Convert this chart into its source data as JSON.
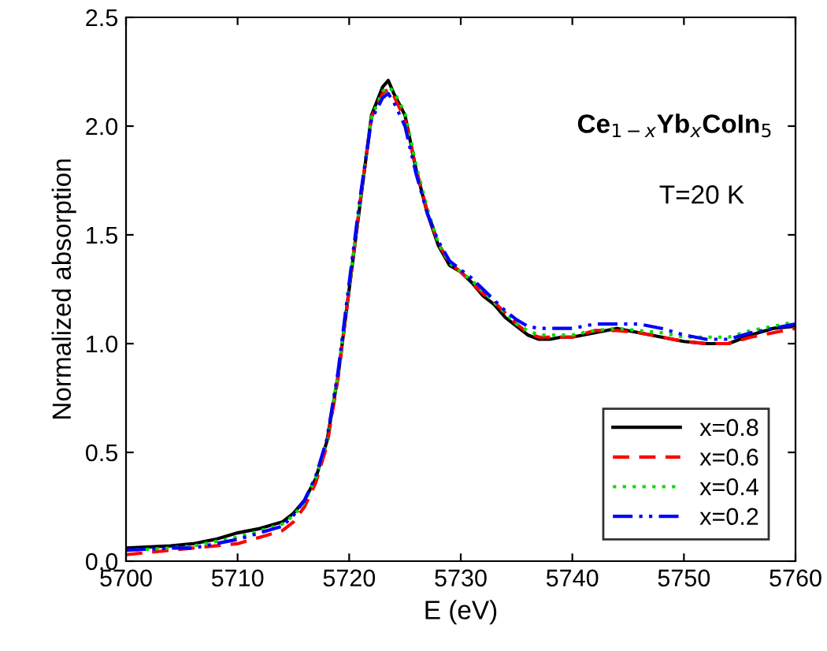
{
  "chart_data": {
    "type": "line",
    "xlabel": "E (eV)",
    "ylabel": "Normalized absorption",
    "annotations": [
      "Ce$_{1−x}$Yb$_{x}$CoIn$_{5}$",
      "T=20 K"
    ],
    "x": [
      5700,
      5704,
      5706,
      5708,
      5710,
      5712,
      5714,
      5715,
      5716,
      5717,
      5718,
      5719,
      5720,
      5721,
      5722,
      5723,
      5723.5,
      5724,
      5725,
      5726,
      5727,
      5728,
      5729,
      5730,
      5731,
      5732,
      5733,
      5734,
      5735,
      5736,
      5737,
      5738,
      5739,
      5740,
      5742,
      5744,
      5746,
      5748,
      5750,
      5752,
      5754,
      5756,
      5758,
      5760
    ],
    "series": [
      {
        "name": "x=0.8",
        "color": "#000000",
        "line_style": "solid",
        "values": [
          0.06,
          0.07,
          0.08,
          0.1,
          0.13,
          0.15,
          0.18,
          0.22,
          0.28,
          0.38,
          0.55,
          0.85,
          1.25,
          1.65,
          2.05,
          2.18,
          2.21,
          2.15,
          2.05,
          1.8,
          1.6,
          1.45,
          1.36,
          1.33,
          1.28,
          1.22,
          1.18,
          1.12,
          1.08,
          1.04,
          1.02,
          1.02,
          1.03,
          1.03,
          1.05,
          1.07,
          1.05,
          1.03,
          1.01,
          1.0,
          1.0,
          1.04,
          1.07,
          1.08
        ]
      },
      {
        "name": "x=0.6",
        "color": "#ff0000",
        "line_style": "dashed",
        "values": [
          0.03,
          0.05,
          0.06,
          0.07,
          0.08,
          0.11,
          0.14,
          0.18,
          0.25,
          0.36,
          0.53,
          0.84,
          1.25,
          1.66,
          2.04,
          2.15,
          2.17,
          2.14,
          2.03,
          1.8,
          1.61,
          1.46,
          1.37,
          1.33,
          1.28,
          1.23,
          1.19,
          1.14,
          1.09,
          1.05,
          1.03,
          1.03,
          1.03,
          1.03,
          1.06,
          1.06,
          1.05,
          1.03,
          1.01,
          1.0,
          1.0,
          1.03,
          1.05,
          1.07
        ]
      },
      {
        "name": "x=0.4",
        "color": "#00dd00",
        "line_style": "dotted",
        "values": [
          0.05,
          0.06,
          0.07,
          0.09,
          0.11,
          0.14,
          0.17,
          0.21,
          0.27,
          0.38,
          0.55,
          0.86,
          1.26,
          1.66,
          2.04,
          2.16,
          2.18,
          2.16,
          2.06,
          1.82,
          1.62,
          1.46,
          1.37,
          1.33,
          1.29,
          1.24,
          1.19,
          1.14,
          1.09,
          1.06,
          1.04,
          1.04,
          1.04,
          1.04,
          1.06,
          1.07,
          1.06,
          1.05,
          1.03,
          1.03,
          1.03,
          1.06,
          1.08,
          1.1
        ]
      },
      {
        "name": "x=0.2",
        "color": "#0000ff",
        "line_style": "dashdot",
        "values": [
          0.05,
          0.06,
          0.06,
          0.08,
          0.1,
          0.13,
          0.16,
          0.21,
          0.28,
          0.39,
          0.56,
          0.87,
          1.28,
          1.68,
          2.03,
          2.13,
          2.15,
          2.11,
          2.0,
          1.78,
          1.6,
          1.47,
          1.38,
          1.34,
          1.3,
          1.25,
          1.2,
          1.15,
          1.11,
          1.08,
          1.07,
          1.07,
          1.07,
          1.07,
          1.09,
          1.09,
          1.09,
          1.07,
          1.04,
          1.02,
          1.02,
          1.05,
          1.07,
          1.09
        ]
      }
    ],
    "xlim": [
      5700,
      5760
    ],
    "xticks": [
      5700,
      5710,
      5720,
      5730,
      5740,
      5750,
      5760
    ],
    "ylim": [
      0,
      2.5
    ],
    "yticks": [
      {
        "value": 0,
        "label": "0.0"
      },
      0.5,
      {
        "value": 1,
        "label": "1.0"
      },
      1.5,
      {
        "value": 2,
        "label": "2.0"
      },
      2.5
    ],
    "grid": false,
    "legend": "bottom right"
  }
}
